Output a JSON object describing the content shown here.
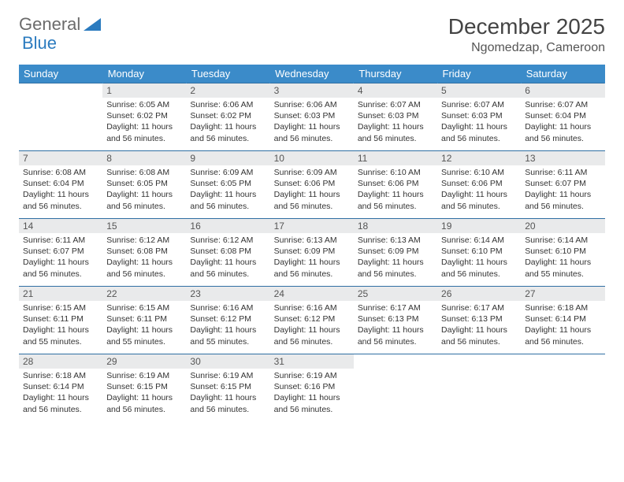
{
  "brand": {
    "general": "General",
    "blue": "Blue"
  },
  "title": "December 2025",
  "location": "Ngomedzap, Cameroon",
  "colors": {
    "header_bg": "#3b8bc9",
    "header_text": "#ffffff",
    "daynum_bg": "#e9eaeb",
    "row_border": "#2f6fa3",
    "text": "#333333"
  },
  "weekdays": [
    "Sunday",
    "Monday",
    "Tuesday",
    "Wednesday",
    "Thursday",
    "Friday",
    "Saturday"
  ],
  "weeks": [
    [
      null,
      {
        "n": "1",
        "sr": "6:05 AM",
        "ss": "6:02 PM",
        "dl": "11 hours and 56 minutes."
      },
      {
        "n": "2",
        "sr": "6:06 AM",
        "ss": "6:02 PM",
        "dl": "11 hours and 56 minutes."
      },
      {
        "n": "3",
        "sr": "6:06 AM",
        "ss": "6:03 PM",
        "dl": "11 hours and 56 minutes."
      },
      {
        "n": "4",
        "sr": "6:07 AM",
        "ss": "6:03 PM",
        "dl": "11 hours and 56 minutes."
      },
      {
        "n": "5",
        "sr": "6:07 AM",
        "ss": "6:03 PM",
        "dl": "11 hours and 56 minutes."
      },
      {
        "n": "6",
        "sr": "6:07 AM",
        "ss": "6:04 PM",
        "dl": "11 hours and 56 minutes."
      }
    ],
    [
      {
        "n": "7",
        "sr": "6:08 AM",
        "ss": "6:04 PM",
        "dl": "11 hours and 56 minutes."
      },
      {
        "n": "8",
        "sr": "6:08 AM",
        "ss": "6:05 PM",
        "dl": "11 hours and 56 minutes."
      },
      {
        "n": "9",
        "sr": "6:09 AM",
        "ss": "6:05 PM",
        "dl": "11 hours and 56 minutes."
      },
      {
        "n": "10",
        "sr": "6:09 AM",
        "ss": "6:06 PM",
        "dl": "11 hours and 56 minutes."
      },
      {
        "n": "11",
        "sr": "6:10 AM",
        "ss": "6:06 PM",
        "dl": "11 hours and 56 minutes."
      },
      {
        "n": "12",
        "sr": "6:10 AM",
        "ss": "6:06 PM",
        "dl": "11 hours and 56 minutes."
      },
      {
        "n": "13",
        "sr": "6:11 AM",
        "ss": "6:07 PM",
        "dl": "11 hours and 56 minutes."
      }
    ],
    [
      {
        "n": "14",
        "sr": "6:11 AM",
        "ss": "6:07 PM",
        "dl": "11 hours and 56 minutes."
      },
      {
        "n": "15",
        "sr": "6:12 AM",
        "ss": "6:08 PM",
        "dl": "11 hours and 56 minutes."
      },
      {
        "n": "16",
        "sr": "6:12 AM",
        "ss": "6:08 PM",
        "dl": "11 hours and 56 minutes."
      },
      {
        "n": "17",
        "sr": "6:13 AM",
        "ss": "6:09 PM",
        "dl": "11 hours and 56 minutes."
      },
      {
        "n": "18",
        "sr": "6:13 AM",
        "ss": "6:09 PM",
        "dl": "11 hours and 56 minutes."
      },
      {
        "n": "19",
        "sr": "6:14 AM",
        "ss": "6:10 PM",
        "dl": "11 hours and 56 minutes."
      },
      {
        "n": "20",
        "sr": "6:14 AM",
        "ss": "6:10 PM",
        "dl": "11 hours and 55 minutes."
      }
    ],
    [
      {
        "n": "21",
        "sr": "6:15 AM",
        "ss": "6:11 PM",
        "dl": "11 hours and 55 minutes."
      },
      {
        "n": "22",
        "sr": "6:15 AM",
        "ss": "6:11 PM",
        "dl": "11 hours and 55 minutes."
      },
      {
        "n": "23",
        "sr": "6:16 AM",
        "ss": "6:12 PM",
        "dl": "11 hours and 55 minutes."
      },
      {
        "n": "24",
        "sr": "6:16 AM",
        "ss": "6:12 PM",
        "dl": "11 hours and 56 minutes."
      },
      {
        "n": "25",
        "sr": "6:17 AM",
        "ss": "6:13 PM",
        "dl": "11 hours and 56 minutes."
      },
      {
        "n": "26",
        "sr": "6:17 AM",
        "ss": "6:13 PM",
        "dl": "11 hours and 56 minutes."
      },
      {
        "n": "27",
        "sr": "6:18 AM",
        "ss": "6:14 PM",
        "dl": "11 hours and 56 minutes."
      }
    ],
    [
      {
        "n": "28",
        "sr": "6:18 AM",
        "ss": "6:14 PM",
        "dl": "11 hours and 56 minutes."
      },
      {
        "n": "29",
        "sr": "6:19 AM",
        "ss": "6:15 PM",
        "dl": "11 hours and 56 minutes."
      },
      {
        "n": "30",
        "sr": "6:19 AM",
        "ss": "6:15 PM",
        "dl": "11 hours and 56 minutes."
      },
      {
        "n": "31",
        "sr": "6:19 AM",
        "ss": "6:16 PM",
        "dl": "11 hours and 56 minutes."
      },
      null,
      null,
      null
    ]
  ],
  "labels": {
    "sunrise": "Sunrise:",
    "sunset": "Sunset:",
    "daylight": "Daylight:"
  }
}
